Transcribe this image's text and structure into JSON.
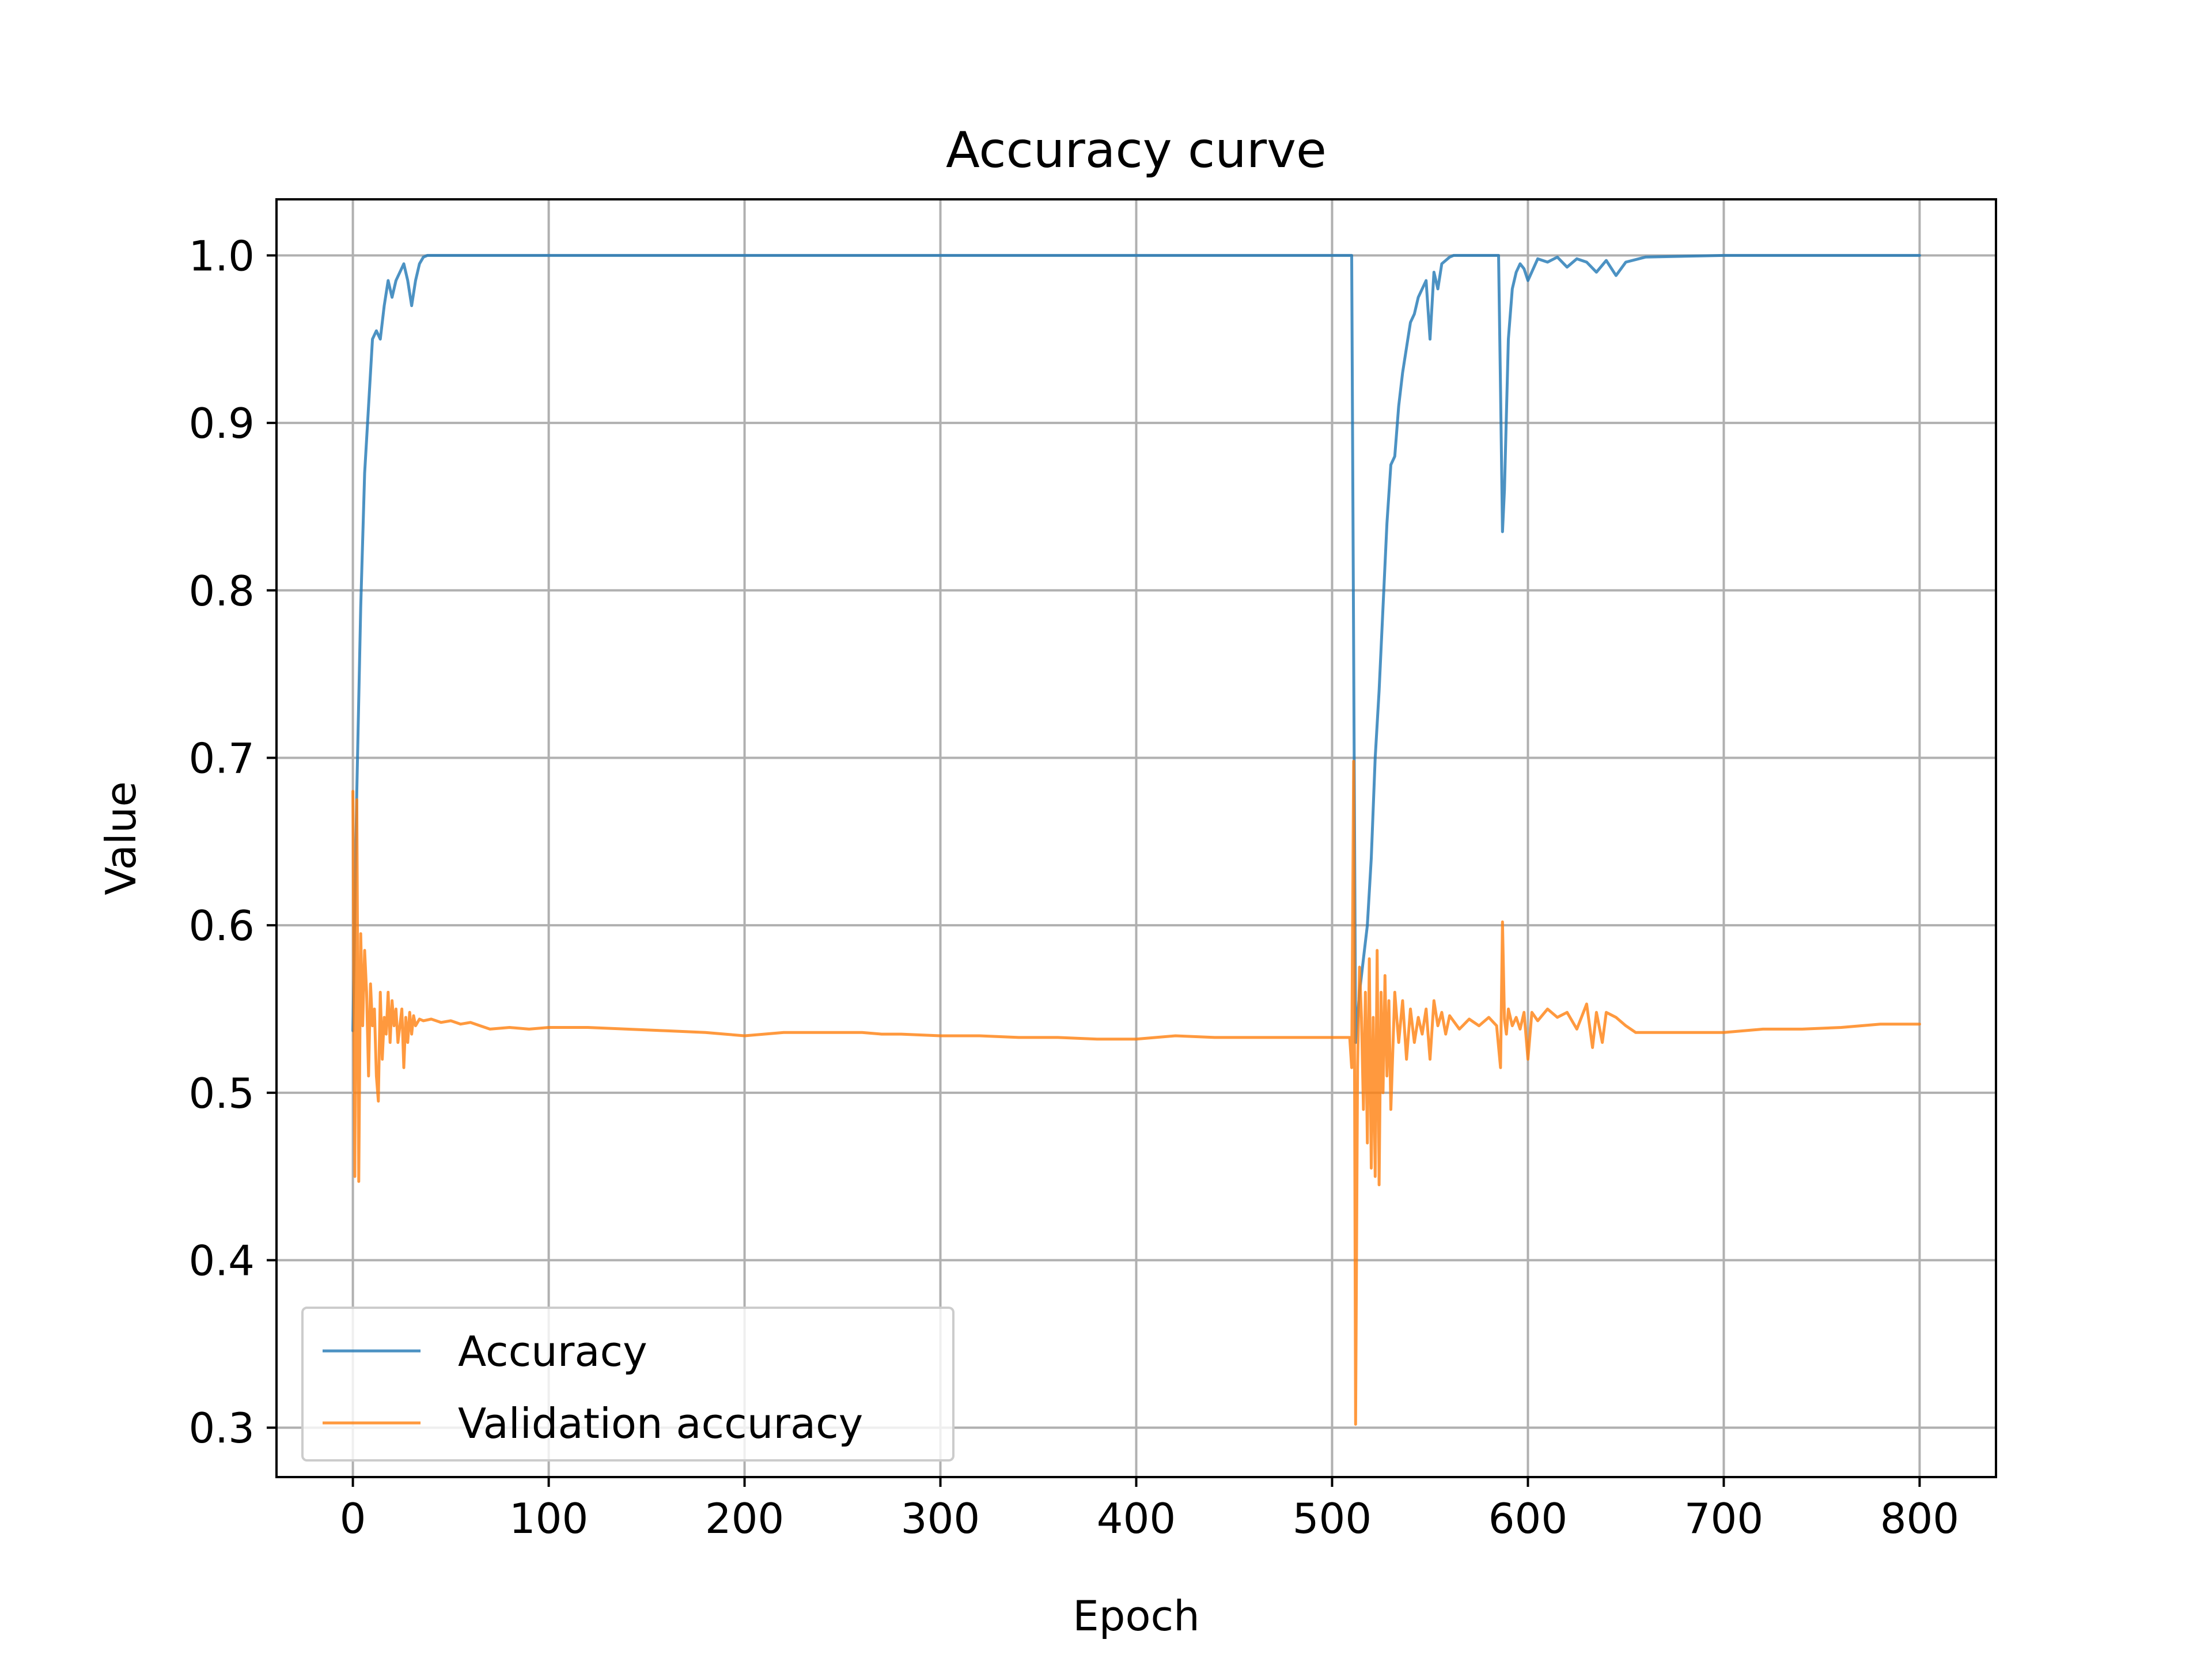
{
  "chart_data": {
    "type": "line",
    "title": "Accuracy curve",
    "xlabel": "Epoch",
    "ylabel": "Value",
    "xlim": [
      -39,
      839
    ],
    "ylim": [
      0.2705,
      1.0335
    ],
    "xticks": [
      0,
      100,
      200,
      300,
      400,
      500,
      600,
      700,
      800
    ],
    "xtick_labels": [
      "0",
      "100",
      "200",
      "300",
      "400",
      "500",
      "600",
      "700",
      "800"
    ],
    "yticks": [
      0.3,
      0.4,
      0.5,
      0.6,
      0.7,
      0.8,
      0.9,
      1.0
    ],
    "ytick_labels": [
      "0.3",
      "0.4",
      "0.5",
      "0.6",
      "0.7",
      "0.8",
      "0.9",
      "1.0"
    ],
    "grid": true,
    "legend": "lower-left",
    "series": [
      {
        "name": "Accuracy",
        "color": "#1f77b4",
        "x": [
          0,
          2,
          4,
          6,
          8,
          10,
          12,
          14,
          16,
          18,
          20,
          22,
          24,
          26,
          28,
          30,
          32,
          34,
          36,
          38,
          40,
          60,
          100,
          200,
          300,
          400,
          500,
          508,
          510,
          512,
          514,
          516,
          518,
          520,
          522,
          524,
          526,
          528,
          530,
          532,
          534,
          536,
          538,
          540,
          542,
          544,
          546,
          548,
          550,
          552,
          554,
          556,
          558,
          560,
          562,
          564,
          570,
          580,
          585,
          586,
          587,
          588,
          590,
          592,
          594,
          596,
          598,
          600,
          605,
          610,
          615,
          620,
          625,
          630,
          635,
          640,
          645,
          650,
          660,
          700,
          800
        ],
        "y": [
          0.537,
          0.68,
          0.79,
          0.87,
          0.91,
          0.95,
          0.955,
          0.95,
          0.97,
          0.985,
          0.975,
          0.985,
          0.99,
          0.995,
          0.985,
          0.97,
          0.985,
          0.995,
          0.999,
          1.0,
          1.0,
          1.0,
          1.0,
          1.0,
          1.0,
          1.0,
          1.0,
          1.0,
          1.0,
          0.53,
          0.56,
          0.58,
          0.6,
          0.64,
          0.7,
          0.74,
          0.79,
          0.84,
          0.875,
          0.88,
          0.91,
          0.93,
          0.945,
          0.96,
          0.965,
          0.975,
          0.98,
          0.985,
          0.95,
          0.99,
          0.98,
          0.995,
          0.997,
          0.999,
          1.0,
          1.0,
          1.0,
          1.0,
          1.0,
          0.92,
          0.835,
          0.86,
          0.95,
          0.98,
          0.99,
          0.995,
          0.992,
          0.985,
          0.998,
          0.996,
          0.999,
          0.993,
          0.998,
          0.996,
          0.99,
          0.997,
          0.988,
          0.996,
          0.999,
          1.0,
          1.0
        ]
      },
      {
        "name": "Validation accuracy",
        "color": "#ff7f0e",
        "x": [
          0,
          1,
          2,
          3,
          4,
          5,
          6,
          7,
          8,
          9,
          10,
          11,
          12,
          13,
          14,
          15,
          16,
          17,
          18,
          19,
          20,
          21,
          22,
          23,
          24,
          25,
          26,
          27,
          28,
          29,
          30,
          31,
          32,
          34,
          36,
          40,
          45,
          50,
          55,
          60,
          65,
          70,
          80,
          90,
          100,
          120,
          140,
          160,
          180,
          190,
          200,
          220,
          240,
          260,
          270,
          280,
          300,
          320,
          340,
          360,
          380,
          400,
          420,
          440,
          460,
          480,
          500,
          508,
          509,
          510,
          511,
          512,
          513,
          514,
          515,
          516,
          517,
          518,
          519,
          520,
          521,
          522,
          523,
          524,
          525,
          526,
          527,
          528,
          529,
          530,
          532,
          534,
          536,
          538,
          540,
          542,
          544,
          546,
          548,
          550,
          552,
          554,
          556,
          558,
          560,
          565,
          570,
          575,
          580,
          584,
          586,
          587,
          588,
          589,
          590,
          592,
          594,
          596,
          598,
          600,
          602,
          605,
          610,
          615,
          620,
          625,
          630,
          633,
          635,
          638,
          640,
          645,
          650,
          655,
          660,
          680,
          700,
          720,
          740,
          760,
          780,
          800
        ],
        "y": [
          0.68,
          0.45,
          0.675,
          0.447,
          0.595,
          0.54,
          0.585,
          0.56,
          0.51,
          0.565,
          0.54,
          0.55,
          0.51,
          0.495,
          0.56,
          0.52,
          0.545,
          0.535,
          0.56,
          0.53,
          0.555,
          0.54,
          0.55,
          0.53,
          0.54,
          0.55,
          0.515,
          0.545,
          0.53,
          0.548,
          0.535,
          0.546,
          0.54,
          0.544,
          0.543,
          0.544,
          0.542,
          0.543,
          0.541,
          0.542,
          0.54,
          0.538,
          0.539,
          0.538,
          0.539,
          0.539,
          0.538,
          0.537,
          0.536,
          0.535,
          0.534,
          0.536,
          0.536,
          0.536,
          0.535,
          0.535,
          0.534,
          0.534,
          0.533,
          0.533,
          0.532,
          0.532,
          0.534,
          0.533,
          0.533,
          0.533,
          0.533,
          0.533,
          0.533,
          0.515,
          0.698,
          0.302,
          0.515,
          0.575,
          0.545,
          0.49,
          0.56,
          0.47,
          0.58,
          0.455,
          0.545,
          0.45,
          0.585,
          0.445,
          0.56,
          0.5,
          0.57,
          0.51,
          0.555,
          0.49,
          0.56,
          0.53,
          0.555,
          0.52,
          0.55,
          0.53,
          0.545,
          0.535,
          0.55,
          0.52,
          0.555,
          0.54,
          0.548,
          0.535,
          0.546,
          0.538,
          0.544,
          0.54,
          0.545,
          0.54,
          0.515,
          0.602,
          0.544,
          0.535,
          0.55,
          0.54,
          0.545,
          0.538,
          0.548,
          0.52,
          0.548,
          0.543,
          0.55,
          0.545,
          0.548,
          0.538,
          0.553,
          0.527,
          0.548,
          0.53,
          0.548,
          0.545,
          0.54,
          0.536,
          0.536,
          0.536,
          0.536,
          0.538,
          0.538,
          0.539,
          0.541,
          0.541
        ]
      }
    ]
  }
}
